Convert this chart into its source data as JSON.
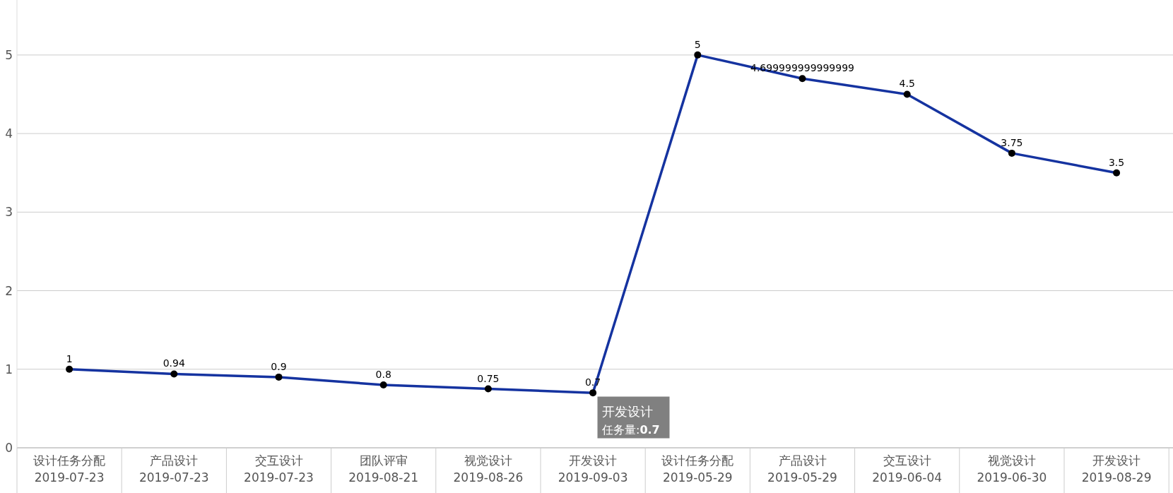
{
  "chart_data": {
    "type": "line",
    "categories": [
      "设计任务分配 2019-07-23",
      "产品设计 2019-07-23",
      "交互设计 2019-07-23",
      "团队评审 2019-08-21",
      "视觉设计 2019-08-26",
      "开发设计 2019-09-03",
      "设计任务分配 2019-05-29",
      "产品设计 2019-05-29",
      "交互设计 2019-06-04",
      "视觉设计 2019-06-30",
      "开发设计 2019-08-29"
    ],
    "series": [
      {
        "color": "#1533a0",
        "values": [
          1,
          0.94,
          0.9,
          0.8,
          0.75,
          0.7,
          5,
          4.699999999999999,
          4.5,
          3.75,
          3.5
        ]
      }
    ],
    "ylim": [
      0,
      5.7
    ],
    "yticks": [
      0,
      1,
      2,
      3,
      4,
      5
    ],
    "grid": "y",
    "marker": "circle",
    "data_labels": true,
    "annotations": [
      "开发设计",
      "任务量:**0.7**"
    ]
  }
}
